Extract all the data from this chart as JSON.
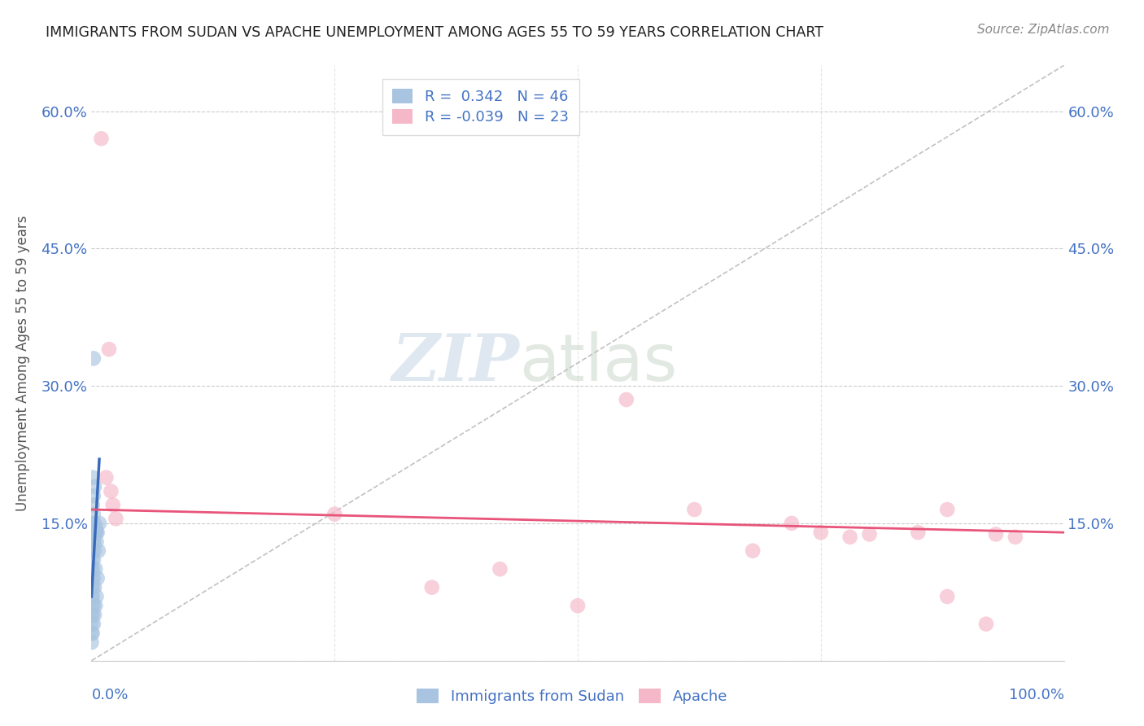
{
  "title": "IMMIGRANTS FROM SUDAN VS APACHE UNEMPLOYMENT AMONG AGES 55 TO 59 YEARS CORRELATION CHART",
  "source": "Source: ZipAtlas.com",
  "ylabel": "Unemployment Among Ages 55 to 59 years",
  "sudan_R": 0.342,
  "sudan_N": 46,
  "apache_R": -0.039,
  "apache_N": 23,
  "sudan_color": "#a8c4e0",
  "apache_color": "#f4b8c8",
  "sudan_line_color": "#3a6bba",
  "apache_line_color": "#e8547a",
  "watermark_zip": "ZIP",
  "watermark_atlas": "atlas",
  "background_color": "#ffffff",
  "grid_color": "#cccccc",
  "title_color": "#222222",
  "axis_label_color": "#4472c4",
  "ylabel_color": "#555555",
  "xlim": [
    0.0,
    1.0
  ],
  "ylim": [
    0.0,
    0.65
  ],
  "ytick_values": [
    0.0,
    0.15,
    0.3,
    0.45,
    0.6
  ],
  "ytick_labels": [
    "",
    "15.0%",
    "30.0%",
    "45.0%",
    "60.0%"
  ],
  "legend_labels": [
    "Immigrants from Sudan",
    "Apache"
  ],
  "sudan_scatter_x": [
    0.0,
    0.0,
    0.0,
    0.0,
    0.0,
    0.0,
    0.0,
    0.0,
    0.0,
    0.0,
    0.001,
    0.001,
    0.001,
    0.001,
    0.001,
    0.001,
    0.001,
    0.002,
    0.002,
    0.002,
    0.002,
    0.002,
    0.003,
    0.003,
    0.003,
    0.003,
    0.004,
    0.004,
    0.004,
    0.005,
    0.005,
    0.006,
    0.006,
    0.007,
    0.008,
    0.002,
    0.003,
    0.001,
    0.004,
    0.002,
    0.001,
    0.003,
    0.005,
    0.002,
    0.001,
    0.002
  ],
  "sudan_scatter_y": [
    0.02,
    0.03,
    0.04,
    0.05,
    0.06,
    0.07,
    0.08,
    0.09,
    0.1,
    0.11,
    0.03,
    0.05,
    0.07,
    0.08,
    0.1,
    0.12,
    0.14,
    0.04,
    0.06,
    0.09,
    0.11,
    0.13,
    0.05,
    0.08,
    0.12,
    0.15,
    0.06,
    0.1,
    0.14,
    0.07,
    0.13,
    0.09,
    0.14,
    0.12,
    0.15,
    0.18,
    0.19,
    0.2,
    0.145,
    0.16,
    0.17,
    0.14,
    0.14,
    0.13,
    0.15,
    0.33
  ],
  "apache_scatter_x": [
    0.01,
    0.018,
    0.015,
    0.02,
    0.022,
    0.025,
    0.25,
    0.35,
    0.42,
    0.5,
    0.55,
    0.62,
    0.68,
    0.72,
    0.75,
    0.78,
    0.8,
    0.85,
    0.88,
    0.88,
    0.92,
    0.93,
    0.95
  ],
  "apache_scatter_y": [
    0.57,
    0.34,
    0.2,
    0.185,
    0.17,
    0.155,
    0.16,
    0.08,
    0.1,
    0.06,
    0.285,
    0.165,
    0.12,
    0.15,
    0.14,
    0.135,
    0.138,
    0.14,
    0.07,
    0.165,
    0.04,
    0.138,
    0.135
  ],
  "sudan_line_x": [
    0.0,
    0.008
  ],
  "sudan_line_y": [
    0.07,
    0.22
  ],
  "apache_line_x": [
    0.0,
    1.0
  ],
  "apache_line_y": [
    0.165,
    0.14
  ],
  "diag_line_x": [
    0.0,
    1.0
  ],
  "diag_line_y": [
    0.0,
    0.65
  ]
}
